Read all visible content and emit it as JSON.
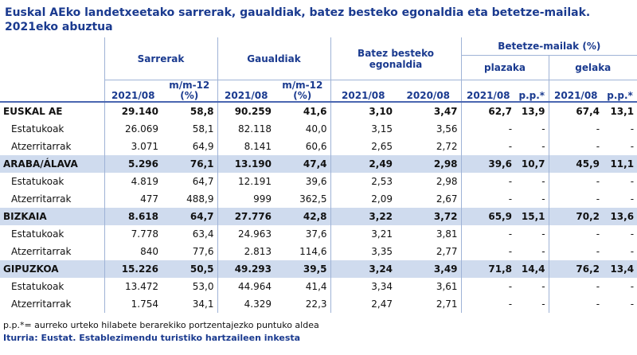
{
  "title": "Euskal AEko landetxeetako sarrerak, gaualdiak, batez besteko egonaldia eta betetze-mailak. 2021eko abuztua",
  "header": {
    "sarrerak": "Sarrerak",
    "gaualdiak": "Gaualdiak",
    "egonaldia": "Batez besteko egonaldia",
    "betetze": "Betetze-mailak (%)",
    "plazaka": "plazaka",
    "gelaka": "gelaka",
    "c_2021": "2021/08",
    "c_mm12": "m/m-12 (%)",
    "c_2020": "2020/08",
    "c_pp": "p.p.*"
  },
  "rows": [
    {
      "label": "EUSKAL AE",
      "group": true,
      "sar": "29.140",
      "sar_pct": "58,8",
      "gau": "90.259",
      "gau_pct": "41,6",
      "eg21": "3,10",
      "eg20": "3,47",
      "pl": "62,7",
      "pl_pp": "13,9",
      "ge": "67,4",
      "ge_pp": "13,1"
    },
    {
      "label": "Estatukoak",
      "group": false,
      "sar": "26.069",
      "sar_pct": "58,1",
      "gau": "82.118",
      "gau_pct": "40,0",
      "eg21": "3,15",
      "eg20": "3,56",
      "pl": "-",
      "pl_pp": "-",
      "ge": "-",
      "ge_pp": "-"
    },
    {
      "label": "Atzerritarrak",
      "group": false,
      "sar": "3.071",
      "sar_pct": "64,9",
      "gau": "8.141",
      "gau_pct": "60,6",
      "eg21": "2,65",
      "eg20": "2,72",
      "pl": "-",
      "pl_pp": "-",
      "ge": "-",
      "ge_pp": "-"
    },
    {
      "label": "ARABA/ÁLAVA",
      "group": true,
      "sar": "5.296",
      "sar_pct": "76,1",
      "gau": "13.190",
      "gau_pct": "47,4",
      "eg21": "2,49",
      "eg20": "2,98",
      "pl": "39,6",
      "pl_pp": "10,7",
      "ge": "45,9",
      "ge_pp": "11,1"
    },
    {
      "label": "Estatukoak",
      "group": false,
      "sar": "4.819",
      "sar_pct": "64,7",
      "gau": "12.191",
      "gau_pct": "39,6",
      "eg21": "2,53",
      "eg20": "2,98",
      "pl": "-",
      "pl_pp": "-",
      "ge": "-",
      "ge_pp": "-"
    },
    {
      "label": "Atzerritarrak",
      "group": false,
      "sar": "477",
      "sar_pct": "488,9",
      "gau": "999",
      "gau_pct": "362,5",
      "eg21": "2,09",
      "eg20": "2,67",
      "pl": "-",
      "pl_pp": "-",
      "ge": "-",
      "ge_pp": "-"
    },
    {
      "label": "BIZKAIA",
      "group": true,
      "sar": "8.618",
      "sar_pct": "64,7",
      "gau": "27.776",
      "gau_pct": "42,8",
      "eg21": "3,22",
      "eg20": "3,72",
      "pl": "65,9",
      "pl_pp": "15,1",
      "ge": "70,2",
      "ge_pp": "13,6"
    },
    {
      "label": "Estatukoak",
      "group": false,
      "sar": "7.778",
      "sar_pct": "63,4",
      "gau": "24.963",
      "gau_pct": "37,6",
      "eg21": "3,21",
      "eg20": "3,81",
      "pl": "-",
      "pl_pp": "-",
      "ge": "-",
      "ge_pp": "-"
    },
    {
      "label": "Atzerritarrak",
      "group": false,
      "sar": "840",
      "sar_pct": "77,6",
      "gau": "2.813",
      "gau_pct": "114,6",
      "eg21": "3,35",
      "eg20": "2,77",
      "pl": "-",
      "pl_pp": "-",
      "ge": "-",
      "ge_pp": "-"
    },
    {
      "label": "GIPUZKOA",
      "group": true,
      "sar": "15.226",
      "sar_pct": "50,5",
      "gau": "49.293",
      "gau_pct": "39,5",
      "eg21": "3,24",
      "eg20": "3,49",
      "pl": "71,8",
      "pl_pp": "14,4",
      "ge": "76,2",
      "ge_pp": "13,4"
    },
    {
      "label": "Estatukoak",
      "group": false,
      "sar": "13.472",
      "sar_pct": "53,0",
      "gau": "44.964",
      "gau_pct": "41,4",
      "eg21": "3,34",
      "eg20": "3,61",
      "pl": "-",
      "pl_pp": "-",
      "ge": "-",
      "ge_pp": "-"
    },
    {
      "label": "Atzerritarrak",
      "group": false,
      "sar": "1.754",
      "sar_pct": "34,1",
      "gau": "4.329",
      "gau_pct": "22,3",
      "eg21": "2,47",
      "eg20": "2,71",
      "pl": "-",
      "pl_pp": "-",
      "ge": "-",
      "ge_pp": "-"
    }
  ],
  "footnote": "p.p.*= aurreko urteko hilabete berarekiko portzentajezko puntuko aldea",
  "source": "Iturria: Eustat. Establezimendu turistiko hartzaileen inkesta",
  "colors": {
    "accent": "#1a3a8f",
    "group_bg": "#cfdbee",
    "header_bg": "#ffffff"
  }
}
